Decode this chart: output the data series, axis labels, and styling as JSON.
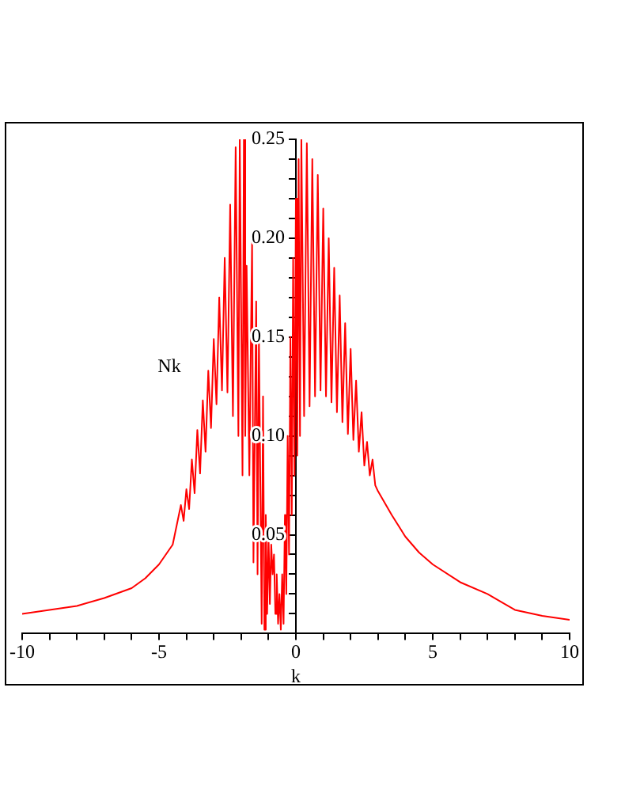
{
  "chart_data": {
    "type": "line",
    "xlabel": "k",
    "ylabel": "Nk",
    "marker": "none",
    "grid": false,
    "legend": false,
    "xlim": [
      -10,
      10
    ],
    "ylim": [
      0,
      0.25
    ],
    "xticks": [
      -10,
      {
        "value": -9,
        "label": null
      },
      {
        "value": -8,
        "label": null
      },
      {
        "value": -7,
        "label": null
      },
      {
        "value": -6,
        "label": null
      },
      -5,
      {
        "value": -4,
        "label": null
      },
      {
        "value": -3,
        "label": null
      },
      {
        "value": -2,
        "label": null
      },
      {
        "value": -1,
        "label": null
      },
      0,
      {
        "value": 1,
        "label": null
      },
      {
        "value": 2,
        "label": null
      },
      {
        "value": 3,
        "label": null
      },
      {
        "value": 4,
        "label": null
      },
      5,
      {
        "value": 6,
        "label": null
      },
      {
        "value": 7,
        "label": null
      },
      {
        "value": 8,
        "label": null
      },
      {
        "value": 9,
        "label": null
      },
      10
    ],
    "yticks": [
      {
        "value": 0.01,
        "label": null
      },
      {
        "value": 0.02,
        "label": null
      },
      {
        "value": 0.03,
        "label": null
      },
      {
        "value": 0.04,
        "label": null
      },
      0.05,
      {
        "value": 0.06,
        "label": null
      },
      {
        "value": 0.07,
        "label": null
      },
      {
        "value": 0.08,
        "label": null
      },
      {
        "value": 0.09,
        "label": null
      },
      {
        "value": 0.1,
        "label": "0.10"
      },
      {
        "value": 0.11,
        "label": null
      },
      {
        "value": 0.12,
        "label": null
      },
      {
        "value": 0.13,
        "label": null
      },
      {
        "value": 0.14,
        "label": null
      },
      0.15,
      {
        "value": 0.16,
        "label": null
      },
      {
        "value": 0.17,
        "label": null
      },
      {
        "value": 0.18,
        "label": null
      },
      {
        "value": 0.19,
        "label": null
      },
      {
        "value": 0.2,
        "label": "0.20"
      },
      {
        "value": 0.21,
        "label": null
      },
      {
        "value": 0.22,
        "label": null
      },
      {
        "value": 0.23,
        "label": null
      },
      {
        "value": 0.24,
        "label": null
      },
      0.25
    ],
    "series": [
      {
        "color": "#ff0000",
        "x": [
          -10,
          -9,
          -8,
          -7,
          -6,
          -5.5,
          -5,
          -4.5,
          -4.2,
          -4.1,
          -4,
          -3.9,
          -3.8,
          -3.7,
          -3.6,
          -3.5,
          -3.4,
          -3.3,
          -3.2,
          -3.1,
          -3,
          -2.9,
          -2.8,
          -2.7,
          -2.6,
          -2.5,
          -2.4,
          -2.3,
          -2.2,
          -2.1,
          -2.05,
          -1.95,
          -1.9,
          -1.85,
          -1.8,
          -1.7,
          -1.6,
          -1.55,
          -1.45,
          -1.4,
          -1.35,
          -1.25,
          -1.2,
          -1.15,
          -1.1,
          -1.05,
          -1,
          -0.95,
          -0.9,
          -0.85,
          -0.8,
          -0.75,
          -0.7,
          -0.65,
          -0.6,
          -0.55,
          -0.5,
          -0.45,
          -0.4,
          -0.35,
          -0.3,
          -0.25,
          -0.2,
          -0.15,
          -0.1,
          -0.05,
          0,
          0.05,
          0.1,
          0.15,
          0.2,
          0.3,
          0.4,
          0.5,
          0.6,
          0.7,
          0.8,
          0.9,
          1,
          1.1,
          1.2,
          1.3,
          1.4,
          1.5,
          1.6,
          1.7,
          1.8,
          1.9,
          2,
          2.1,
          2.2,
          2.3,
          2.4,
          2.5,
          2.6,
          2.7,
          2.8,
          2.9,
          3,
          3.5,
          4,
          4.5,
          5,
          6,
          7,
          8,
          9,
          10
        ],
        "values": [
          0.01,
          0.012,
          0.014,
          0.018,
          0.023,
          0.028,
          0.035,
          0.045,
          0.065,
          0.057,
          0.073,
          0.063,
          0.088,
          0.071,
          0.103,
          0.081,
          0.118,
          0.092,
          0.133,
          0.104,
          0.149,
          0.116,
          0.17,
          0.123,
          0.19,
          0.122,
          0.217,
          0.11,
          0.246,
          0.1,
          0.25,
          0.08,
          0.25,
          0.1,
          0.186,
          0.08,
          0.198,
          0.036,
          0.168,
          0.03,
          0.15,
          0.005,
          0.12,
          0.002,
          0.06,
          0.01,
          0.05,
          0.015,
          0.045,
          0.03,
          0.04,
          0.01,
          0.03,
          0.005,
          0.02,
          0.002,
          0.03,
          0.005,
          0.06,
          0.02,
          0.1,
          0.04,
          0.15,
          0.06,
          0.19,
          0.08,
          0.22,
          0.09,
          0.24,
          0.1,
          0.25,
          0.11,
          0.248,
          0.115,
          0.24,
          0.12,
          0.232,
          0.123,
          0.215,
          0.12,
          0.2,
          0.117,
          0.185,
          0.112,
          0.171,
          0.107,
          0.157,
          0.101,
          0.144,
          0.098,
          0.128,
          0.092,
          0.112,
          0.085,
          0.097,
          0.08,
          0.088,
          0.075,
          0.072,
          0.06,
          0.049,
          0.041,
          0.035,
          0.026,
          0.02,
          0.012,
          0.009,
          0.007
        ]
      }
    ]
  }
}
